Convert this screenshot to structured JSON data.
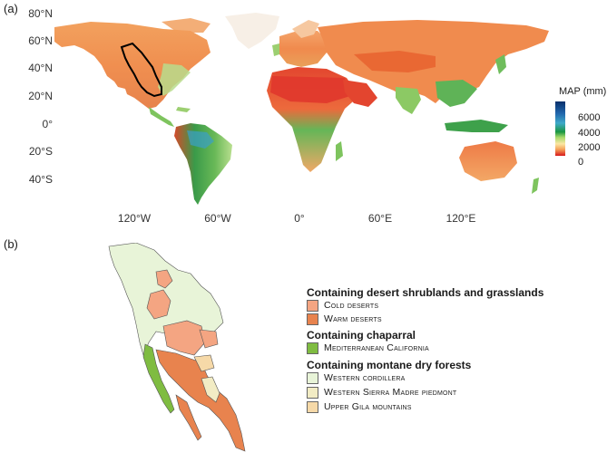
{
  "panel_a": {
    "label": "(a)",
    "lat_ticks": [
      "80°N",
      "60°N",
      "40°N",
      "20°N",
      "0°",
      "20°S",
      "40°S"
    ],
    "lon_ticks": [
      "120°W",
      "60°W",
      "0°",
      "60°E",
      "120°E"
    ],
    "colorbar": {
      "title": "MAP (mm)",
      "ticks": [
        "6000",
        "4000",
        "2000",
        "0"
      ]
    }
  },
  "panel_b": {
    "label": "(b)",
    "legend": {
      "groups": [
        {
          "heading": "Containing desert shrublands and grasslands",
          "items": [
            {
              "label": "Cold deserts",
              "color": "#f4a582"
            },
            {
              "label": "Warm deserts",
              "color": "#e8834e"
            }
          ]
        },
        {
          "heading": "Containing chaparral",
          "items": [
            {
              "label": "Mediterranean California",
              "color": "#7fbc41"
            }
          ]
        },
        {
          "heading": "Containing montane dry forests",
          "items": [
            {
              "label": "Western cordillera",
              "color": "#e8f4d8"
            },
            {
              "label": "Western Sierra Madre piedmont",
              "color": "#f2ecc4"
            },
            {
              "label": "Upper Gila mountains",
              "color": "#f6d9a8"
            }
          ]
        }
      ]
    }
  }
}
